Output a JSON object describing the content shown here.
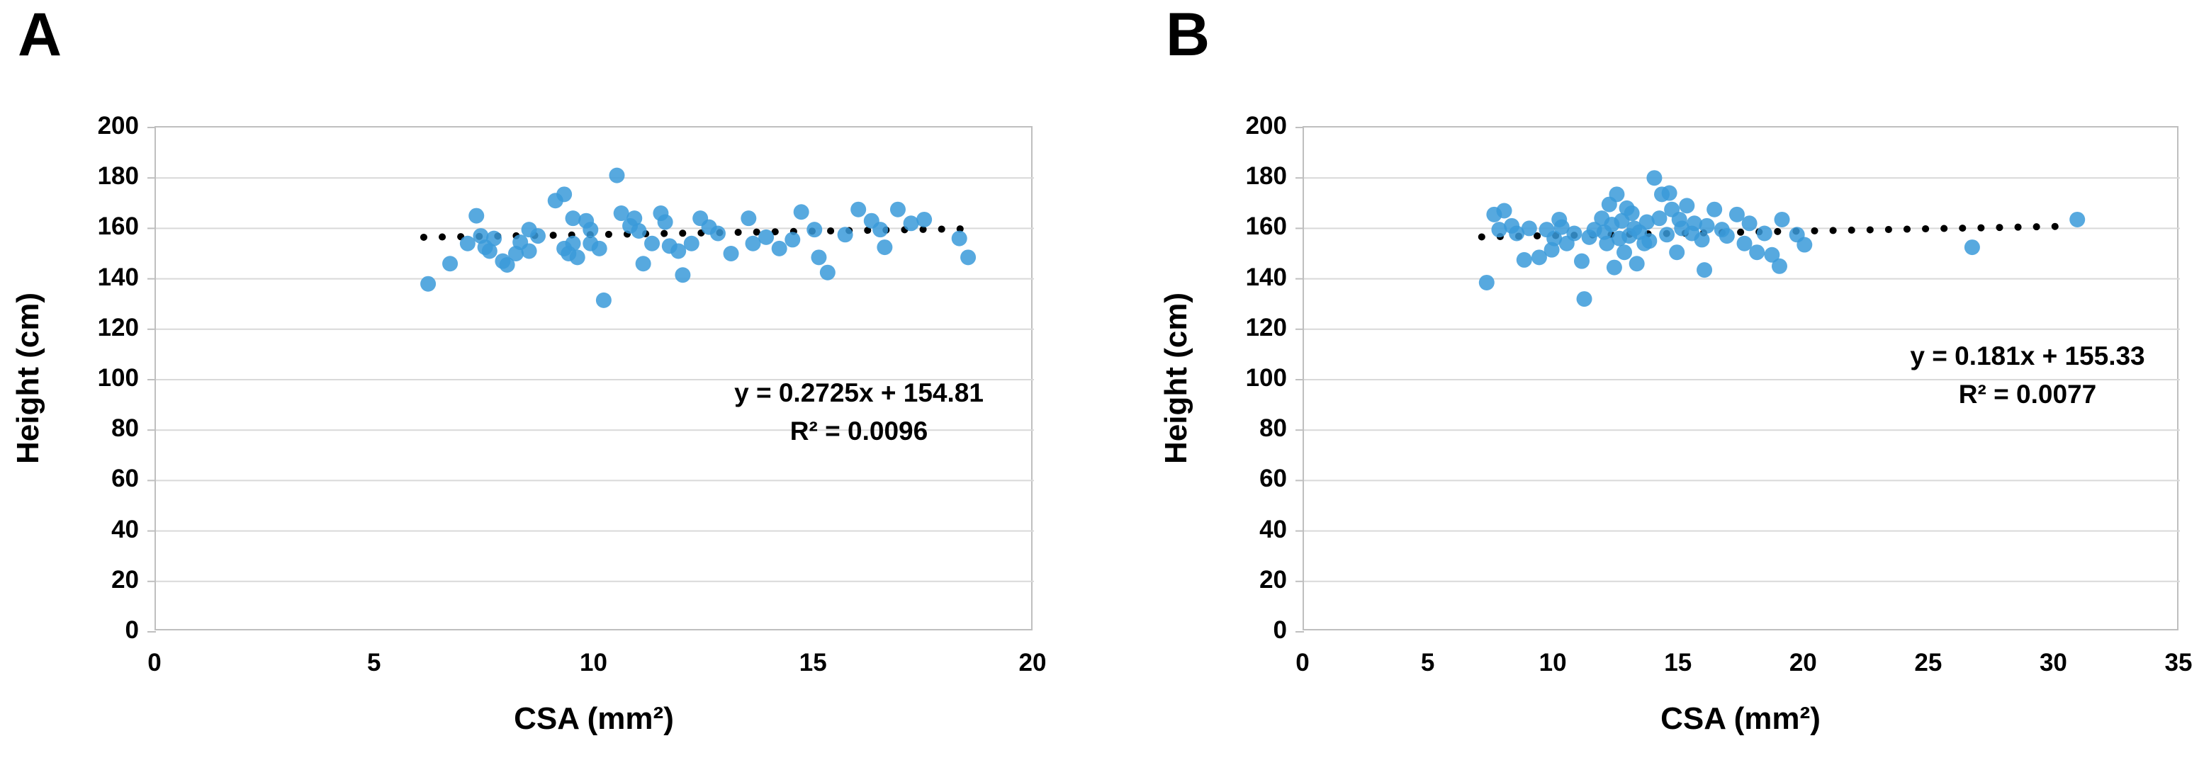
{
  "colors": {
    "point_fill": "#3A9AD9",
    "trendline": "#000000",
    "gridline": "#D9D9D9",
    "frame": "#BFBFBF",
    "text": "#000000"
  },
  "chart_data": [
    {
      "type": "scatter",
      "panel_label": "A",
      "xlabel": "CSA (mm²)",
      "ylabel": "Height (cm)",
      "xlim": [
        0,
        20
      ],
      "ylim": [
        0,
        200
      ],
      "x_ticks": [
        0,
        5,
        10,
        15,
        20
      ],
      "y_ticks": [
        200,
        180,
        160,
        140,
        120,
        100,
        80,
        60,
        40,
        20,
        0
      ],
      "grid": true,
      "legend": "none",
      "equation": "y = 0.2725x + 154.81",
      "r_squared": "R² = 0.0096",
      "trendline": {
        "slope": 0.2725,
        "intercept": 154.81,
        "x_start": 6.1,
        "x_end": 18.6,
        "style": "dotted"
      },
      "points": [
        [
          6.2,
          138
        ],
        [
          6.7,
          146
        ],
        [
          7.1,
          154
        ],
        [
          7.3,
          165
        ],
        [
          7.4,
          157
        ],
        [
          7.5,
          152.5
        ],
        [
          7.6,
          151
        ],
        [
          7.7,
          156
        ],
        [
          7.9,
          147
        ],
        [
          8.0,
          145.5
        ],
        [
          8.2,
          150
        ],
        [
          8.3,
          154.5
        ],
        [
          8.5,
          151
        ],
        [
          8.5,
          159.5
        ],
        [
          8.7,
          157
        ],
        [
          9.1,
          171
        ],
        [
          9.3,
          173.5
        ],
        [
          9.3,
          152
        ],
        [
          9.4,
          150
        ],
        [
          9.5,
          164
        ],
        [
          9.5,
          154
        ],
        [
          9.6,
          148.5
        ],
        [
          9.8,
          163
        ],
        [
          9.9,
          159.5
        ],
        [
          9.9,
          154
        ],
        [
          10.1,
          152
        ],
        [
          10.2,
          131.5
        ],
        [
          10.5,
          181
        ],
        [
          10.6,
          166
        ],
        [
          10.8,
          161
        ],
        [
          10.9,
          164
        ],
        [
          11.0,
          159
        ],
        [
          11.1,
          146
        ],
        [
          11.3,
          154
        ],
        [
          11.5,
          166
        ],
        [
          11.6,
          162.5
        ],
        [
          11.7,
          153
        ],
        [
          11.9,
          151
        ],
        [
          12.0,
          141.5
        ],
        [
          12.2,
          154
        ],
        [
          12.4,
          164
        ],
        [
          12.6,
          160.5
        ],
        [
          12.8,
          158
        ],
        [
          13.1,
          150
        ],
        [
          13.5,
          164
        ],
        [
          13.6,
          154
        ],
        [
          13.9,
          156.5
        ],
        [
          14.2,
          152
        ],
        [
          14.5,
          155.5
        ],
        [
          14.7,
          166.5
        ],
        [
          15.0,
          159.5
        ],
        [
          15.1,
          148.5
        ],
        [
          15.3,
          142.5
        ],
        [
          15.7,
          157.5
        ],
        [
          16.0,
          167.5
        ],
        [
          16.3,
          163
        ],
        [
          16.5,
          159.5
        ],
        [
          16.6,
          152.5
        ],
        [
          16.9,
          167.5
        ],
        [
          17.2,
          162
        ],
        [
          17.5,
          163.5
        ],
        [
          18.3,
          156
        ],
        [
          18.5,
          148.5
        ]
      ]
    },
    {
      "type": "scatter",
      "panel_label": "B",
      "xlabel": "CSA (mm²)",
      "ylabel": "Height (cm)",
      "xlim": [
        0,
        35
      ],
      "ylim": [
        0,
        200
      ],
      "x_ticks": [
        0,
        5,
        10,
        15,
        20,
        25,
        30,
        35
      ],
      "y_ticks": [
        200,
        180,
        160,
        140,
        120,
        100,
        80,
        60,
        40,
        20,
        0
      ],
      "grid": true,
      "legend": "none",
      "equation": "y = 0.181x + 155.33",
      "r_squared": "R² = 0.0077",
      "trendline": {
        "slope": 0.181,
        "intercept": 155.33,
        "x_start": 7.1,
        "x_end": 30.5,
        "style": "dotted"
      },
      "points": [
        [
          7.3,
          138.5
        ],
        [
          7.6,
          165.5
        ],
        [
          7.8,
          159.5
        ],
        [
          8.0,
          167
        ],
        [
          8.3,
          161
        ],
        [
          8.5,
          158
        ],
        [
          8.8,
          147.5
        ],
        [
          9.0,
          160
        ],
        [
          9.4,
          148.5
        ],
        [
          9.7,
          159.5
        ],
        [
          9.9,
          151.5
        ],
        [
          10.0,
          156
        ],
        [
          10.2,
          163.5
        ],
        [
          10.3,
          160.5
        ],
        [
          10.5,
          154
        ],
        [
          10.8,
          158
        ],
        [
          11.1,
          147
        ],
        [
          11.2,
          132
        ],
        [
          11.4,
          156.5
        ],
        [
          11.6,
          159.5
        ],
        [
          11.9,
          164
        ],
        [
          12.0,
          158.5
        ],
        [
          12.1,
          154
        ],
        [
          12.2,
          169.5
        ],
        [
          12.3,
          161.5
        ],
        [
          12.4,
          144.5
        ],
        [
          12.5,
          173.5
        ],
        [
          12.6,
          156
        ],
        [
          12.7,
          163
        ],
        [
          12.8,
          150.5
        ],
        [
          12.9,
          168
        ],
        [
          13.0,
          157
        ],
        [
          13.1,
          166
        ],
        [
          13.2,
          160
        ],
        [
          13.3,
          146
        ],
        [
          13.4,
          158.5
        ],
        [
          13.6,
          154
        ],
        [
          13.7,
          162.5
        ],
        [
          13.8,
          155
        ],
        [
          14.0,
          180
        ],
        [
          14.2,
          164
        ],
        [
          14.3,
          173.5
        ],
        [
          14.5,
          157.5
        ],
        [
          14.6,
          174
        ],
        [
          14.7,
          167.5
        ],
        [
          14.9,
          150.5
        ],
        [
          15.0,
          163.5
        ],
        [
          15.1,
          160
        ],
        [
          15.3,
          169
        ],
        [
          15.5,
          158
        ],
        [
          15.6,
          162
        ],
        [
          15.9,
          155.5
        ],
        [
          16.0,
          143.5
        ],
        [
          16.1,
          161
        ],
        [
          16.4,
          167.5
        ],
        [
          16.7,
          159.5
        ],
        [
          16.9,
          157
        ],
        [
          17.3,
          165.5
        ],
        [
          17.6,
          154
        ],
        [
          17.8,
          162
        ],
        [
          18.1,
          150.5
        ],
        [
          18.4,
          158
        ],
        [
          18.7,
          149.5
        ],
        [
          19.0,
          145
        ],
        [
          19.1,
          163.5
        ],
        [
          19.7,
          157.5
        ],
        [
          20.0,
          153.5
        ],
        [
          26.7,
          152.5
        ],
        [
          30.9,
          163.5
        ]
      ]
    }
  ]
}
